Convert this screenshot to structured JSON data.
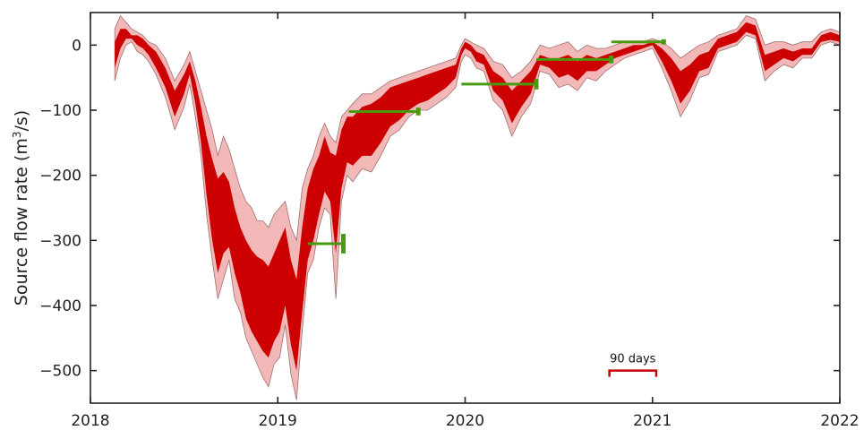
{
  "chart_data": {
    "type": "area",
    "title": "",
    "xlabel": "",
    "ylabel_text": "Source flow rate (m",
    "ylabel_sup": "3",
    "ylabel_end": "/s)",
    "xlim": [
      2018,
      2022
    ],
    "ylim": [
      -550,
      50
    ],
    "xticks": [
      2018,
      2019,
      2020,
      2021,
      2022
    ],
    "xtick_labels": [
      "2018",
      "2019",
      "2020",
      "2021",
      "2022"
    ],
    "yticks": [
      -500,
      -400,
      -300,
      -200,
      -100,
      0
    ],
    "ytick_labels": [
      "−500",
      "−400",
      "−300",
      "−200",
      "−100",
      "0"
    ],
    "grid": false,
    "colors": {
      "inner_band": "#cc0000",
      "outer_band": "#f2b8b8",
      "outer_edge": "#a07070",
      "segments": "#4a9a10",
      "scale_bar": "#cc0000",
      "axis": "#222222"
    },
    "series": [
      {
        "x": [
          2018.13,
          2018.16,
          2018.19,
          2018.22,
          2018.25,
          2018.28,
          2018.31,
          2018.35,
          2018.4,
          2018.45,
          2018.5,
          2018.53,
          2018.56,
          2018.59,
          2018.62,
          2018.65,
          2018.68,
          2018.71,
          2018.74,
          2018.77,
          2018.8,
          2018.83,
          2018.86,
          2018.89,
          2018.92,
          2018.95,
          2018.98,
          2019.01,
          2019.04,
          2019.07,
          2019.1,
          2019.13,
          2019.16,
          2019.19,
          2019.22,
          2019.25,
          2019.28,
          2019.31,
          2019.34,
          2019.37,
          2019.4,
          2019.45,
          2019.5,
          2019.55,
          2019.6,
          2019.65,
          2019.7,
          2019.75,
          2019.8,
          2019.85,
          2019.9,
          2019.95,
          2019.98,
          2020.0,
          2020.03,
          2020.06,
          2020.1,
          2020.15,
          2020.2,
          2020.25,
          2020.3,
          2020.35,
          2020.4,
          2020.45,
          2020.5,
          2020.55,
          2020.6,
          2020.65,
          2020.7,
          2020.75,
          2020.8,
          2020.85,
          2020.9,
          2020.95,
          2021.0,
          2021.05,
          2021.1,
          2021.15,
          2021.2,
          2021.25,
          2021.3,
          2021.35,
          2021.4,
          2021.45,
          2021.5,
          2021.55,
          2021.6,
          2021.65,
          2021.7,
          2021.75,
          2021.8,
          2021.85,
          2021.9,
          2021.95,
          2022.0
        ],
        "lower_outer": [
          -55,
          -20,
          0,
          5,
          -10,
          -15,
          -25,
          -45,
          -80,
          -130,
          -95,
          -60,
          -110,
          -170,
          -260,
          -330,
          -390,
          -360,
          -330,
          -390,
          -410,
          -450,
          -470,
          -490,
          -510,
          -525,
          -490,
          -480,
          -430,
          -505,
          -545,
          -440,
          -350,
          -330,
          -280,
          -250,
          -260,
          -390,
          -240,
          -200,
          -210,
          -190,
          -195,
          -170,
          -140,
          -130,
          -110,
          -100,
          -100,
          -90,
          -80,
          -65,
          -25,
          -15,
          -20,
          -35,
          -40,
          -85,
          -100,
          -140,
          -110,
          -90,
          -40,
          -45,
          -65,
          -60,
          -70,
          -50,
          -55,
          -40,
          -30,
          -20,
          -15,
          -10,
          -5,
          -35,
          -70,
          -110,
          -85,
          -50,
          -45,
          -10,
          -5,
          0,
          15,
          10,
          -55,
          -40,
          -30,
          -35,
          -20,
          -20,
          0,
          5,
          0
        ],
        "lower_inner": [
          -35,
          -5,
          10,
          10,
          0,
          -5,
          -15,
          -35,
          -65,
          -110,
          -75,
          -45,
          -90,
          -150,
          -230,
          -300,
          -350,
          -320,
          -310,
          -350,
          -380,
          -420,
          -440,
          -455,
          -470,
          -480,
          -455,
          -440,
          -400,
          -460,
          -500,
          -410,
          -330,
          -300,
          -260,
          -225,
          -240,
          -320,
          -220,
          -180,
          -185,
          -170,
          -170,
          -150,
          -125,
          -115,
          -100,
          -90,
          -85,
          -75,
          -65,
          -50,
          -15,
          -5,
          -10,
          -25,
          -30,
          -70,
          -85,
          -120,
          -95,
          -75,
          -30,
          -35,
          -50,
          -45,
          -55,
          -40,
          -40,
          -30,
          -20,
          -15,
          -10,
          -5,
          0,
          -25,
          -55,
          -90,
          -70,
          -40,
          -35,
          -5,
          0,
          5,
          20,
          15,
          -40,
          -30,
          -20,
          -25,
          -15,
          -15,
          5,
          8,
          5
        ],
        "upper_inner": [
          5,
          25,
          25,
          15,
          15,
          10,
          0,
          -10,
          -35,
          -70,
          -45,
          -25,
          -55,
          -95,
          -140,
          -175,
          -205,
          -195,
          -210,
          -250,
          -280,
          -300,
          -315,
          -325,
          -330,
          -340,
          -320,
          -300,
          -280,
          -330,
          -360,
          -280,
          -220,
          -190,
          -170,
          -140,
          -165,
          -170,
          -130,
          -110,
          -110,
          -95,
          -90,
          -80,
          -65,
          -60,
          -55,
          -50,
          -45,
          -40,
          -35,
          -30,
          -5,
          5,
          0,
          -10,
          -15,
          -40,
          -50,
          -70,
          -55,
          -40,
          -15,
          -20,
          -20,
          -15,
          -25,
          -15,
          -20,
          -15,
          -10,
          -5,
          0,
          0,
          5,
          -5,
          -20,
          -40,
          -30,
          -15,
          -10,
          10,
          15,
          20,
          35,
          30,
          -15,
          -10,
          -5,
          -10,
          -5,
          -5,
          15,
          20,
          15
        ],
        "upper_outer": [
          25,
          45,
          35,
          25,
          20,
          15,
          5,
          0,
          -20,
          -55,
          -30,
          -10,
          -40,
          -70,
          -100,
          -130,
          -170,
          -140,
          -160,
          -190,
          -220,
          -240,
          -250,
          -270,
          -270,
          -280,
          -260,
          -250,
          -240,
          -280,
          -300,
          -220,
          -190,
          -170,
          -140,
          -120,
          -140,
          -150,
          -110,
          -100,
          -90,
          -75,
          -75,
          -65,
          -55,
          -50,
          -45,
          -40,
          -35,
          -30,
          -25,
          -20,
          0,
          10,
          5,
          0,
          -5,
          -25,
          -30,
          -50,
          -40,
          -25,
          0,
          -5,
          0,
          5,
          -10,
          0,
          -5,
          -5,
          0,
          5,
          5,
          5,
          10,
          5,
          -5,
          -20,
          -10,
          0,
          5,
          15,
          20,
          25,
          45,
          40,
          0,
          5,
          5,
          0,
          5,
          5,
          20,
          25,
          20
        ]
      }
    ],
    "segments": [
      {
        "x0": 2019.16,
        "x1": 2019.35,
        "y": -305,
        "endcap_span": [
          -290,
          -320
        ]
      },
      {
        "x0": 2019.38,
        "x1": 2019.75,
        "y": -102,
        "endcap_span": [
          -96,
          -108
        ]
      },
      {
        "x0": 2019.98,
        "x1": 2020.38,
        "y": -60,
        "endcap_span": [
          -52,
          -68
        ]
      },
      {
        "x0": 2020.38,
        "x1": 2020.78,
        "y": -22,
        "endcap_span": [
          -16,
          -28
        ]
      },
      {
        "x0": 2020.78,
        "x1": 2021.06,
        "y": 5,
        "endcap_span": [
          1,
          9
        ]
      }
    ],
    "scale_bar": {
      "label": "90 days",
      "x0": 2020.77,
      "x1": 2021.02,
      "y": -500
    }
  }
}
